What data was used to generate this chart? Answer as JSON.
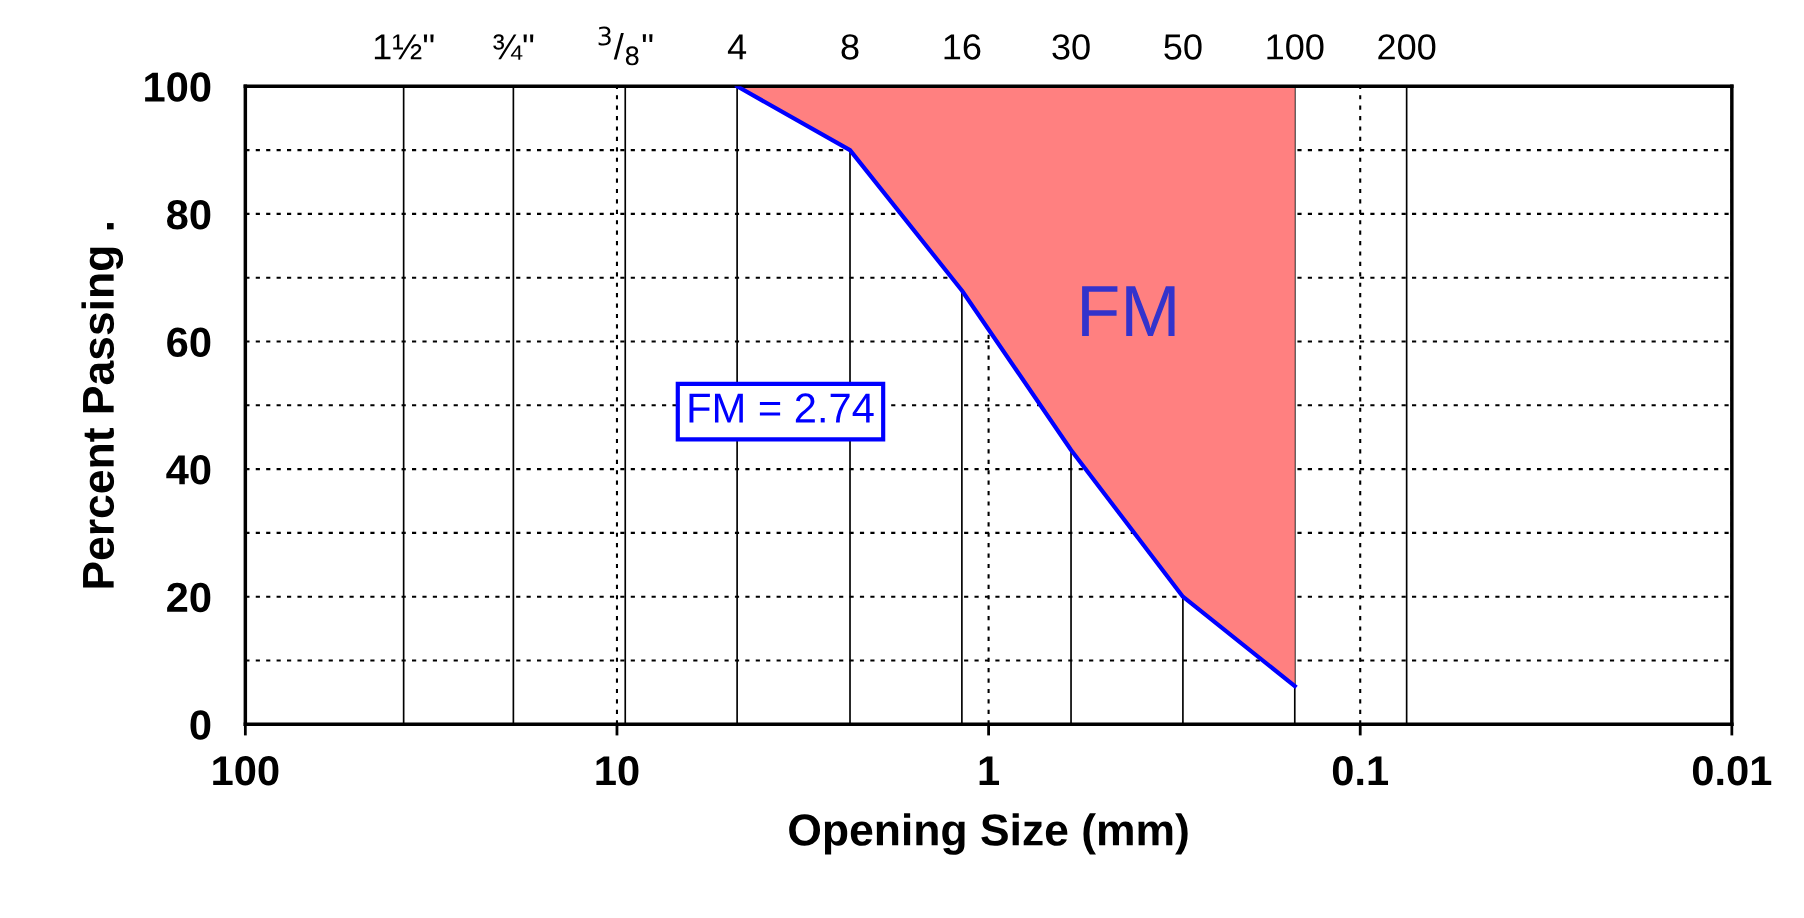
{
  "chart_data": {
    "type": "line",
    "xlabel": "Opening Size (mm)",
    "ylabel": "Percent Passing .",
    "log": "x",
    "xlim": [
      100,
      0.01
    ],
    "xticks": [
      100,
      10,
      1,
      0.1,
      0.01
    ],
    "ylim": [
      0,
      100
    ],
    "yticks": [
      0,
      {
        "value": 10,
        "label": null
      },
      20,
      {
        "value": 30,
        "label": null
      },
      40,
      {
        "value": 50,
        "label": null
      },
      60,
      {
        "value": 70,
        "label": null
      },
      80,
      {
        "value": 90,
        "label": null
      },
      100
    ],
    "ref_lines": [
      {
        "axis": "x",
        "value": 37.5
      },
      {
        "axis": "x",
        "value": 19
      },
      {
        "axis": "x",
        "value": 9.5
      },
      {
        "axis": "x",
        "value": 4.75
      },
      {
        "axis": "x",
        "value": 2.36
      },
      {
        "axis": "x",
        "value": 1.18
      },
      {
        "axis": "x",
        "value": 0.6
      },
      {
        "axis": "x",
        "value": 0.3
      },
      {
        "axis": "x",
        "value": 0.15
      },
      {
        "axis": "x",
        "value": 0.075
      }
    ],
    "colors": [
      "#ff8080"
    ],
    "grid": true,
    "legend": false,
    "marker": "none",
    "line_style": "solid",
    "x": [
      4.75,
      2.36,
      1.18,
      0.6,
      0.3,
      0.15
    ],
    "series": [
      {
        "color": "#0000ff",
        "values": [
          100,
          90,
          68,
          43,
          20,
          6
        ],
        "lower": [
          100,
          90,
          68,
          43,
          20,
          6
        ],
        "upper": [
          100,
          100,
          100,
          100,
          100,
          100
        ]
      }
    ],
    "annotations": [
      "FM = 2.74",
      "FM",
      {
        "text": "1½\"",
        "x": 37.5,
        "y": 100
      },
      {
        "text": "¾\"",
        "x": 19,
        "y": 100
      },
      {
        "text": "$^{3}$/$_{8}$\"",
        "x": 9.5,
        "y": 100
      },
      {
        "text": "4",
        "x": 4.75,
        "y": 100
      },
      {
        "text": "8",
        "x": 2.36,
        "y": 100
      },
      {
        "text": "16",
        "x": 1.18,
        "y": 100
      },
      {
        "text": "30",
        "x": 0.6,
        "y": 100
      },
      {
        "text": "50",
        "x": 0.3,
        "y": 100
      },
      {
        "text": "100",
        "x": 0.15,
        "y": 100
      },
      {
        "text": "200",
        "x": 0.075,
        "y": 100
      }
    ]
  }
}
